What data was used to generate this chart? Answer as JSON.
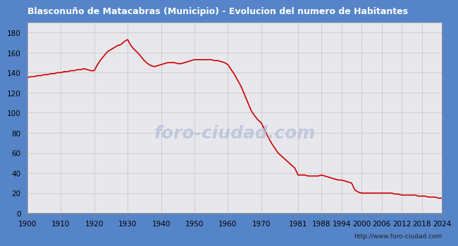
{
  "title": "Blasconuño de Matacabras (Municipio) - Evolucion del numero de Habitantes",
  "title_color": "white",
  "title_bg_color": "#5585C8",
  "plot_bg_color": "#E8E8EC",
  "line_color": "#CC0000",
  "watermark_color": "#B0BDD8",
  "watermark_text": "foro-ciudad.com",
  "url": "http://www.foro-ciudad.com",
  "years": [
    1900,
    1901,
    1902,
    1903,
    1904,
    1905,
    1906,
    1907,
    1908,
    1909,
    1910,
    1911,
    1912,
    1913,
    1914,
    1915,
    1916,
    1917,
    1918,
    1919,
    1920,
    1921,
    1922,
    1923,
    1924,
    1925,
    1926,
    1927,
    1928,
    1929,
    1930,
    1931,
    1932,
    1933,
    1934,
    1935,
    1936,
    1937,
    1938,
    1939,
    1940,
    1941,
    1942,
    1943,
    1944,
    1945,
    1946,
    1947,
    1948,
    1949,
    1950,
    1951,
    1952,
    1953,
    1954,
    1955,
    1956,
    1957,
    1958,
    1959,
    1960,
    1961,
    1962,
    1963,
    1964,
    1965,
    1966,
    1967,
    1968,
    1969,
    1970,
    1971,
    1972,
    1973,
    1974,
    1975,
    1976,
    1977,
    1978,
    1979,
    1980,
    1981,
    1982,
    1983,
    1984,
    1985,
    1986,
    1987,
    1988,
    1989,
    1990,
    1991,
    1992,
    1993,
    1994,
    1995,
    1996,
    1997,
    1998,
    1999,
    2000,
    2001,
    2002,
    2003,
    2004,
    2005,
    2006,
    2007,
    2008,
    2009,
    2010,
    2011,
    2012,
    2013,
    2014,
    2015,
    2016,
    2017,
    2018,
    2019,
    2020,
    2021,
    2022,
    2023,
    2024
  ],
  "population": [
    135,
    136,
    136,
    137,
    137,
    138,
    138,
    139,
    139,
    140,
    140,
    141,
    141,
    142,
    142,
    143,
    143,
    144,
    143,
    142,
    142,
    148,
    153,
    157,
    161,
    163,
    165,
    167,
    168,
    171,
    173,
    167,
    163,
    160,
    156,
    152,
    149,
    147,
    146,
    147,
    148,
    149,
    150,
    150,
    150,
    149,
    149,
    150,
    151,
    152,
    153,
    153,
    153,
    153,
    153,
    153,
    152,
    152,
    151,
    150,
    148,
    143,
    138,
    132,
    126,
    118,
    110,
    102,
    97,
    93,
    90,
    83,
    76,
    70,
    65,
    60,
    57,
    54,
    51,
    48,
    45,
    38,
    38,
    38,
    37,
    37,
    37,
    37,
    38,
    37,
    36,
    35,
    34,
    33,
    33,
    32,
    31,
    30,
    23,
    21,
    20,
    20,
    20,
    20,
    20,
    20,
    20,
    20,
    20,
    20,
    19,
    19,
    18,
    18,
    18,
    18,
    18,
    17,
    17,
    17,
    16,
    16,
    16,
    15,
    15
  ],
  "xtick_years": [
    1900,
    1910,
    1920,
    1930,
    1940,
    1950,
    1960,
    1970,
    1981,
    1988,
    1994,
    2000,
    2006,
    2012,
    2018,
    2024
  ],
  "yticks": [
    0,
    20,
    40,
    60,
    80,
    100,
    120,
    140,
    160,
    180
  ],
  "ylim": [
    0,
    190
  ],
  "xlim": [
    1900,
    2024
  ],
  "grid_color": "#C8C8D0",
  "outer_bg_color": "#5585C8"
}
